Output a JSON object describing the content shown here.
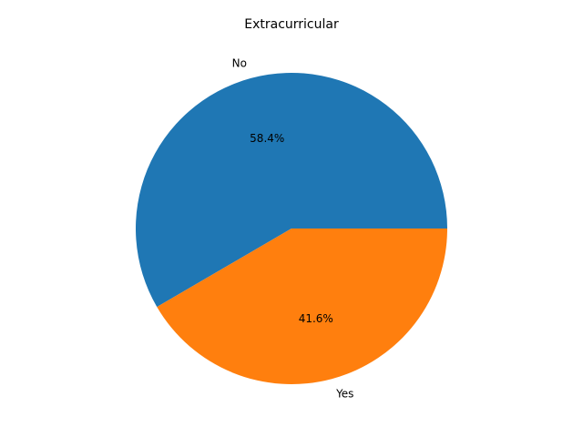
{
  "chart_data": {
    "type": "pie",
    "title": "Extracurricular",
    "slices": [
      {
        "label": "No",
        "value": 58.4,
        "pct_label": "58.4%",
        "color": "#1f77b4"
      },
      {
        "label": "Yes",
        "value": 41.6,
        "pct_label": "41.6%",
        "color": "#ff7f0e"
      }
    ],
    "start_angle_deg": 0,
    "direction": "counterclockwise",
    "legend": "none"
  }
}
